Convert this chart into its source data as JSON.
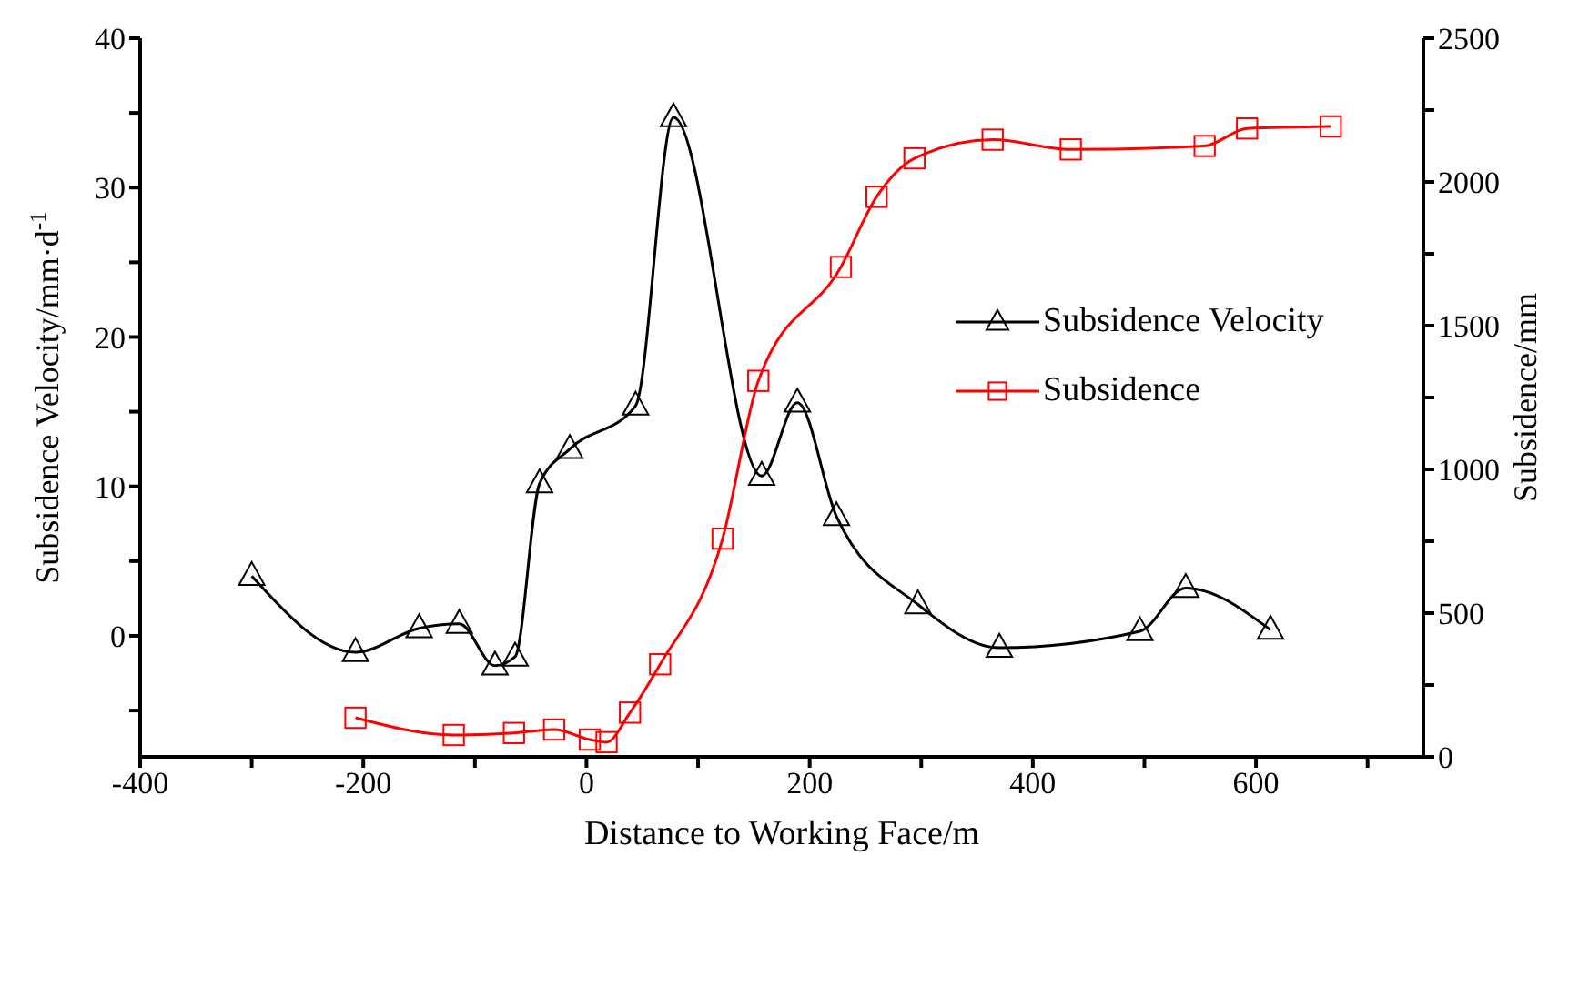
{
  "chart_data": {
    "type": "line",
    "xlabel": "Distance to Working Face/m",
    "ylabel": "Subsidence Velocity/mm·d$^{-1}$",
    "y2label": "Subsidence/mm",
    "xlim": [
      -400,
      750
    ],
    "xticks": [
      -400,
      {
        "value": -300,
        "label": null
      },
      -200,
      {
        "value": -100,
        "label": null
      },
      0,
      {
        "value": 100,
        "label": null
      },
      200,
      {
        "value": 300,
        "label": null
      },
      400,
      {
        "value": 500,
        "label": null
      },
      600,
      {
        "value": 700,
        "label": null
      }
    ],
    "ylim": [
      -8.1,
      40
    ],
    "yticks": [
      {
        "value": -5,
        "label": null
      },
      0,
      {
        "value": 5,
        "label": null
      },
      10,
      {
        "value": 15,
        "label": null
      },
      20,
      {
        "value": 25,
        "label": null
      },
      30,
      {
        "value": 35,
        "label": null
      },
      40
    ],
    "y2lim": [
      0,
      2500
    ],
    "y2ticks": [
      0,
      {
        "value": 250,
        "label": null
      },
      500,
      {
        "value": 750,
        "label": null
      },
      1000,
      {
        "value": 1250,
        "label": null
      },
      1500,
      {
        "value": 1750,
        "label": null
      },
      2000,
      {
        "value": 2250,
        "label": null
      },
      2500
    ],
    "legend": "right",
    "series": [
      {
        "name": "Subsidence Velocity",
        "color": "#000000",
        "marker": "triangle",
        "x": [
          -300,
          -207,
          -150,
          -114,
          -82,
          -64,
          -42,
          -15,
          44,
          78,
          157,
          189,
          224,
          297,
          370,
          496,
          537,
          613
        ],
        "values": [
          4.0,
          -1.1,
          0.5,
          0.8,
          -2.0,
          -1.4,
          10.2,
          12.5,
          15.4,
          34.7,
          10.7,
          15.6,
          8.0,
          2.1,
          -0.8,
          0.3,
          3.2,
          0.4
        ]
      },
      {
        "name": "Subsidence",
        "color": "#ff0000",
        "marker": "square",
        "axis": "y2",
        "x": [
          -207,
          -119,
          -65,
          -29,
          3,
          18,
          39,
          66,
          122,
          154,
          228,
          260,
          294,
          364,
          434,
          554,
          592,
          667
        ],
        "values": [
          136,
          76,
          83,
          95,
          60,
          51,
          154,
          322,
          759,
          1308,
          1704,
          1948,
          2082,
          2147,
          2113,
          2125,
          2186,
          2193
        ]
      }
    ]
  }
}
